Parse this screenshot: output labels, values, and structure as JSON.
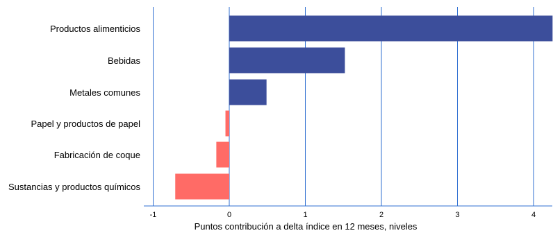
{
  "chart_data": {
    "type": "bar",
    "orientation": "horizontal",
    "categories": [
      "Productos alimenticios",
      "Bebidas",
      "Metales comunes",
      "Papel y productos de papel",
      "Fabricación de coque",
      "Sustancias y productos químicos"
    ],
    "values": [
      4.25,
      1.52,
      0.49,
      -0.05,
      -0.17,
      -0.71
    ],
    "xlabel": "Puntos contribución a delta índice en 12 meses, niveles",
    "xlim": [
      -1,
      4.25
    ],
    "x_ticks": [
      "-1",
      "0",
      "1",
      "2",
      "3",
      "4"
    ],
    "grid": "vertical",
    "legend": "none",
    "colors": {
      "positive": "#3c4e9b",
      "negative": "#ff6b66",
      "grid": "#2f6fd1",
      "axis": "#2f6fd1"
    }
  }
}
